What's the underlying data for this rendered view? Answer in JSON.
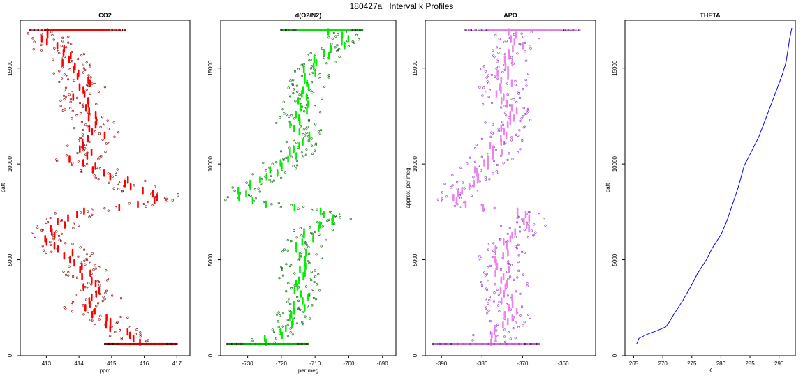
{
  "figure": {
    "title": "180427a   Interval k Profiles"
  },
  "chart_data": [
    {
      "id": "co2",
      "type": "scatter",
      "title": "CO2",
      "xlabel": "ppm",
      "ylabel": "patt",
      "xlim": [
        412.2,
        417.4
      ],
      "ylim": [
        0,
        17500
      ],
      "xticks": [
        413,
        414,
        415,
        416,
        417
      ],
      "yticks": [
        0,
        5000,
        10000,
        15000
      ],
      "color": "#ff0000",
      "outline": "#8b0000",
      "mean_profile": [
        [
          413.0,
          17000
        ],
        [
          413.1,
          16500
        ],
        [
          413.3,
          16000
        ],
        [
          413.6,
          15500
        ],
        [
          413.8,
          15000
        ],
        [
          414.0,
          14500
        ],
        [
          414.2,
          14000
        ],
        [
          414.0,
          13500
        ],
        [
          414.1,
          13000
        ],
        [
          414.3,
          12500
        ],
        [
          414.4,
          12000
        ],
        [
          414.6,
          11500
        ],
        [
          414.2,
          11000
        ],
        [
          414.3,
          10500
        ],
        [
          413.9,
          10200
        ],
        [
          414.3,
          10000
        ],
        [
          414.6,
          9700
        ],
        [
          415.5,
          9000
        ],
        [
          415.9,
          8600
        ],
        [
          416.6,
          8300
        ],
        [
          415.5,
          7800
        ],
        [
          413.9,
          7500
        ],
        [
          413.5,
          7000
        ],
        [
          413.1,
          6500
        ],
        [
          413.0,
          6000
        ],
        [
          413.6,
          5500
        ],
        [
          413.9,
          5000
        ],
        [
          414.1,
          4500
        ],
        [
          414.3,
          4000
        ],
        [
          414.4,
          3500
        ],
        [
          414.6,
          3000
        ],
        [
          414.2,
          2500
        ],
        [
          414.8,
          2000
        ],
        [
          415.1,
          1500
        ],
        [
          415.6,
          1000
        ],
        [
          415.8,
          600
        ]
      ],
      "scatter_spread": 0.7,
      "dense_rows": [
        {
          "y": 17000,
          "x_range": [
            412.5,
            415.4
          ]
        },
        {
          "y": 600,
          "x_range": [
            414.8,
            417.0
          ]
        }
      ]
    },
    {
      "id": "o2n2",
      "type": "scatter",
      "title": "d(O2/N2)",
      "xlabel": "per meg",
      "ylabel": "",
      "xlim": [
        -738,
        -686
      ],
      "ylim": [
        0,
        17500
      ],
      "xticks": [
        -730,
        -720,
        -710,
        -700,
        -690
      ],
      "yticks": [
        0,
        5000,
        10000,
        15000
      ],
      "color": "#00ee00",
      "outline": "#006400",
      "mean_profile": [
        [
          -705,
          17000
        ],
        [
          -700,
          16500
        ],
        [
          -704,
          16000
        ],
        [
          -708,
          15500
        ],
        [
          -712,
          15000
        ],
        [
          -711,
          14500
        ],
        [
          -713,
          14000
        ],
        [
          -714,
          13500
        ],
        [
          -713,
          13000
        ],
        [
          -715,
          12500
        ],
        [
          -716,
          12000
        ],
        [
          -712,
          11500
        ],
        [
          -713,
          11000
        ],
        [
          -717,
          10500
        ],
        [
          -720,
          10000
        ],
        [
          -723,
          9500
        ],
        [
          -727,
          9000
        ],
        [
          -731,
          8600
        ],
        [
          -734,
          8200
        ],
        [
          -708,
          7500
        ],
        [
          -705,
          7100
        ],
        [
          -711,
          6500
        ],
        [
          -713,
          6000
        ],
        [
          -714,
          5500
        ],
        [
          -714,
          5000
        ],
        [
          -715,
          4500
        ],
        [
          -715,
          4000
        ],
        [
          -714,
          3500
        ],
        [
          -714,
          3000
        ],
        [
          -715,
          2500
        ],
        [
          -716,
          2000
        ],
        [
          -719,
          1500
        ],
        [
          -722,
          1000
        ],
        [
          -726,
          600
        ]
      ],
      "scatter_spread": 6,
      "dense_rows": [
        {
          "y": 17000,
          "x_range": [
            -720,
            -696
          ]
        },
        {
          "y": 600,
          "x_range": [
            -736,
            -712
          ]
        }
      ]
    },
    {
      "id": "apo",
      "type": "scatter",
      "title": "APO",
      "xlabel": "",
      "ylabel": "approx. per meg",
      "xlim": [
        -394,
        -352
      ],
      "ylim": [
        0,
        17500
      ],
      "xticks": [
        -390,
        -380,
        -370,
        -360
      ],
      "yticks": [
        0,
        5000,
        10000,
        15000
      ],
      "color": "#ee82ee",
      "outline": "#9932cc",
      "mean_profile": [
        [
          -374,
          17000
        ],
        [
          -371,
          16500
        ],
        [
          -372,
          16000
        ],
        [
          -374,
          15500
        ],
        [
          -375,
          15000
        ],
        [
          -374,
          14500
        ],
        [
          -375,
          14000
        ],
        [
          -375,
          13500
        ],
        [
          -374,
          13000
        ],
        [
          -373,
          12500
        ],
        [
          -374,
          12000
        ],
        [
          -373,
          11500
        ],
        [
          -376,
          11000
        ],
        [
          -376,
          10500
        ],
        [
          -379,
          10000
        ],
        [
          -381,
          9500
        ],
        [
          -383,
          9000
        ],
        [
          -385,
          8500
        ],
        [
          -387,
          8000
        ],
        [
          -372,
          7500
        ],
        [
          -369,
          7000
        ],
        [
          -371,
          6500
        ],
        [
          -374,
          6000
        ],
        [
          -375,
          5500
        ],
        [
          -376,
          5000
        ],
        [
          -375,
          4500
        ],
        [
          -375,
          4000
        ],
        [
          -374,
          3500
        ],
        [
          -374,
          3000
        ],
        [
          -373,
          2500
        ],
        [
          -374,
          2000
        ],
        [
          -376,
          1500
        ],
        [
          -377,
          1000
        ],
        [
          -378,
          600
        ]
      ],
      "scatter_spread": 6,
      "dense_rows": [
        {
          "y": 17000,
          "x_range": [
            -384,
            -356
          ]
        },
        {
          "y": 600,
          "x_range": [
            -392,
            -366
          ]
        }
      ]
    },
    {
      "id": "theta",
      "type": "line",
      "title": "THETA",
      "xlabel": "K",
      "ylabel": "patt",
      "xlim": [
        263.5,
        292.8
      ],
      "ylim": [
        0,
        17500
      ],
      "xticks": [
        265,
        270,
        275,
        280,
        285,
        290
      ],
      "yticks": [
        0,
        5000,
        10000,
        15000
      ],
      "color": "#0000ff",
      "series": [
        {
          "x": [
            264.6,
            265.5,
            265.9,
            267.2,
            269.0,
            270.5,
            271.0,
            272.0,
            273.5,
            275.0,
            276.0,
            277.5,
            278.5,
            280.0,
            281.0,
            282.0,
            283.0,
            284.0,
            285.5,
            286.5,
            287.5,
            288.5,
            289.5,
            290.5,
            291.2,
            291.5,
            291.8,
            292.2
          ],
          "y": [
            600,
            600,
            900,
            1100,
            1300,
            1500,
            1700,
            2200,
            2900,
            3700,
            4300,
            5000,
            5600,
            6300,
            7000,
            7900,
            8800,
            9900,
            10800,
            11400,
            12200,
            13000,
            13800,
            14600,
            15300,
            15900,
            16500,
            17100
          ]
        }
      ]
    }
  ]
}
